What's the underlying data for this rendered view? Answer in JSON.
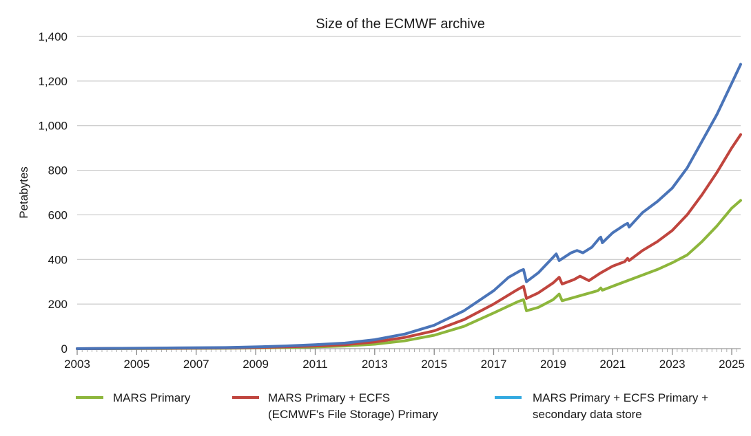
{
  "chart_data": {
    "type": "line",
    "title": "Size of the ECMWF archive",
    "xlabel": "",
    "ylabel": "Petabytes",
    "xlim": [
      2003,
      2025.3
    ],
    "ylim": [
      0,
      1400
    ],
    "x_ticks": [
      "2003",
      "2005",
      "2007",
      "2009",
      "2011",
      "2013",
      "2015",
      "2017",
      "2019",
      "2021",
      "2023",
      "2025"
    ],
    "x_tick_values": [
      2003,
      2005,
      2007,
      2009,
      2011,
      2013,
      2015,
      2017,
      2019,
      2021,
      2023,
      2025
    ],
    "y_ticks": [
      "0",
      "200",
      "400",
      "600",
      "800",
      "1,000",
      "1,200",
      "1,400"
    ],
    "y_tick_values": [
      0,
      200,
      400,
      600,
      800,
      1000,
      1200,
      1400
    ],
    "grid": "horizontal",
    "legend_position": "bottom",
    "series": [
      {
        "name": "MARS Primary",
        "legend_lines": [
          "MARS Primary"
        ],
        "color": "#8db63c",
        "legend_color": "#8db63c",
        "points": [
          [
            2003,
            0
          ],
          [
            2006,
            1
          ],
          [
            2008,
            2
          ],
          [
            2009,
            3
          ],
          [
            2010,
            5
          ],
          [
            2011,
            8
          ],
          [
            2012,
            12
          ],
          [
            2013,
            20
          ],
          [
            2014,
            35
          ],
          [
            2015,
            60
          ],
          [
            2016,
            100
          ],
          [
            2017,
            160
          ],
          [
            2017.8,
            210
          ],
          [
            2018.0,
            220
          ],
          [
            2018.1,
            170
          ],
          [
            2018.5,
            185
          ],
          [
            2019.0,
            220
          ],
          [
            2019.2,
            245
          ],
          [
            2019.3,
            215
          ],
          [
            2019.7,
            230
          ],
          [
            2020.5,
            260
          ],
          [
            2020.6,
            272
          ],
          [
            2020.65,
            262
          ],
          [
            2021.0,
            280
          ],
          [
            2022.0,
            330
          ],
          [
            2022.5,
            355
          ],
          [
            2023.0,
            385
          ],
          [
            2023.5,
            420
          ],
          [
            2024.0,
            480
          ],
          [
            2024.5,
            550
          ],
          [
            2025.0,
            630
          ],
          [
            2025.3,
            665
          ]
        ]
      },
      {
        "name": "MARS Primary + ECFS (ECMWF's File Storage) Primary",
        "legend_lines": [
          "MARS Primary + ECFS",
          "(ECMWF's File Storage) Primary"
        ],
        "color": "#c0453e",
        "legend_color": "#c0453e",
        "points": [
          [
            2003,
            0
          ],
          [
            2006,
            2
          ],
          [
            2008,
            3
          ],
          [
            2009,
            5
          ],
          [
            2010,
            8
          ],
          [
            2011,
            12
          ],
          [
            2012,
            18
          ],
          [
            2013,
            30
          ],
          [
            2014,
            50
          ],
          [
            2015,
            80
          ],
          [
            2016,
            130
          ],
          [
            2017,
            200
          ],
          [
            2017.8,
            265
          ],
          [
            2018.0,
            280
          ],
          [
            2018.1,
            225
          ],
          [
            2018.5,
            250
          ],
          [
            2019.0,
            295
          ],
          [
            2019.2,
            320
          ],
          [
            2019.3,
            290
          ],
          [
            2019.7,
            310
          ],
          [
            2019.9,
            325
          ],
          [
            2020.2,
            305
          ],
          [
            2020.6,
            340
          ],
          [
            2021.0,
            370
          ],
          [
            2021.4,
            390
          ],
          [
            2021.5,
            405
          ],
          [
            2021.55,
            395
          ],
          [
            2022.0,
            440
          ],
          [
            2022.5,
            480
          ],
          [
            2023.0,
            530
          ],
          [
            2023.5,
            600
          ],
          [
            2024.0,
            690
          ],
          [
            2024.5,
            790
          ],
          [
            2025.0,
            900
          ],
          [
            2025.3,
            960
          ]
        ]
      },
      {
        "name": "MARS Primary + ECFS Primary + secondary data store",
        "legend_lines": [
          "MARS Primary + ECFS Primary +",
          "secondary data store"
        ],
        "color": "#4a74b8",
        "legend_color": "#33a9e0",
        "points": [
          [
            2003,
            0
          ],
          [
            2006,
            3
          ],
          [
            2008,
            5
          ],
          [
            2009,
            8
          ],
          [
            2010,
            12
          ],
          [
            2011,
            18
          ],
          [
            2012,
            25
          ],
          [
            2013,
            40
          ],
          [
            2014,
            65
          ],
          [
            2015,
            105
          ],
          [
            2016,
            170
          ],
          [
            2017,
            260
          ],
          [
            2017.5,
            320
          ],
          [
            2017.9,
            350
          ],
          [
            2018.0,
            355
          ],
          [
            2018.1,
            300
          ],
          [
            2018.5,
            340
          ],
          [
            2019.0,
            410
          ],
          [
            2019.1,
            425
          ],
          [
            2019.2,
            395
          ],
          [
            2019.6,
            430
          ],
          [
            2019.8,
            440
          ],
          [
            2020.0,
            430
          ],
          [
            2020.3,
            455
          ],
          [
            2020.55,
            495
          ],
          [
            2020.6,
            500
          ],
          [
            2020.65,
            475
          ],
          [
            2021.0,
            520
          ],
          [
            2021.4,
            555
          ],
          [
            2021.5,
            562
          ],
          [
            2021.55,
            545
          ],
          [
            2022.0,
            610
          ],
          [
            2022.5,
            660
          ],
          [
            2023.0,
            720
          ],
          [
            2023.5,
            810
          ],
          [
            2024.0,
            930
          ],
          [
            2024.5,
            1050
          ],
          [
            2025.0,
            1190
          ],
          [
            2025.3,
            1275
          ]
        ]
      }
    ]
  }
}
